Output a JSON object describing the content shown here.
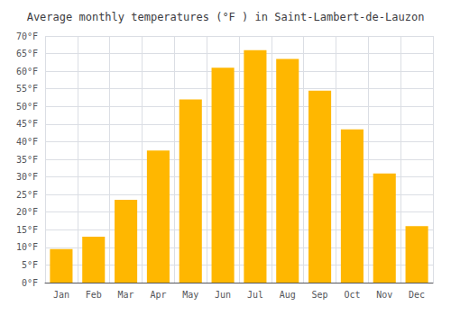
{
  "chart_data": {
    "type": "bar",
    "title": "Average monthly temperatures (°F ) in Saint-Lambert-de-Lauzon",
    "categories": [
      "Jan",
      "Feb",
      "Mar",
      "Apr",
      "May",
      "Jun",
      "Jul",
      "Aug",
      "Sep",
      "Oct",
      "Nov",
      "Dec"
    ],
    "values": [
      9.5,
      13.0,
      23.5,
      37.5,
      52.0,
      61.0,
      66.0,
      63.5,
      54.5,
      43.5,
      31.0,
      16.0
    ],
    "color": "#FFB700",
    "ylim": [
      0,
      70
    ],
    "yticks": [
      {
        "value": 0,
        "label": "0°F"
      },
      {
        "value": 5,
        "label": "5°F"
      },
      {
        "value": 10,
        "label": "10°F"
      },
      {
        "value": 15,
        "label": "15°F"
      },
      {
        "value": 20,
        "label": "20°F"
      },
      {
        "value": 25,
        "label": "25°F"
      },
      {
        "value": 30,
        "label": "30°F"
      },
      {
        "value": 35,
        "label": "35°F"
      },
      {
        "value": 40,
        "label": "40°F"
      },
      {
        "value": 45,
        "label": "45°F"
      },
      {
        "value": 50,
        "label": "50°F"
      },
      {
        "value": 55,
        "label": "55°F"
      },
      {
        "value": 60,
        "label": "60°F"
      },
      {
        "value": 65,
        "label": "65°F"
      },
      {
        "value": 70,
        "label": "70°F"
      }
    ],
    "grid": true
  }
}
